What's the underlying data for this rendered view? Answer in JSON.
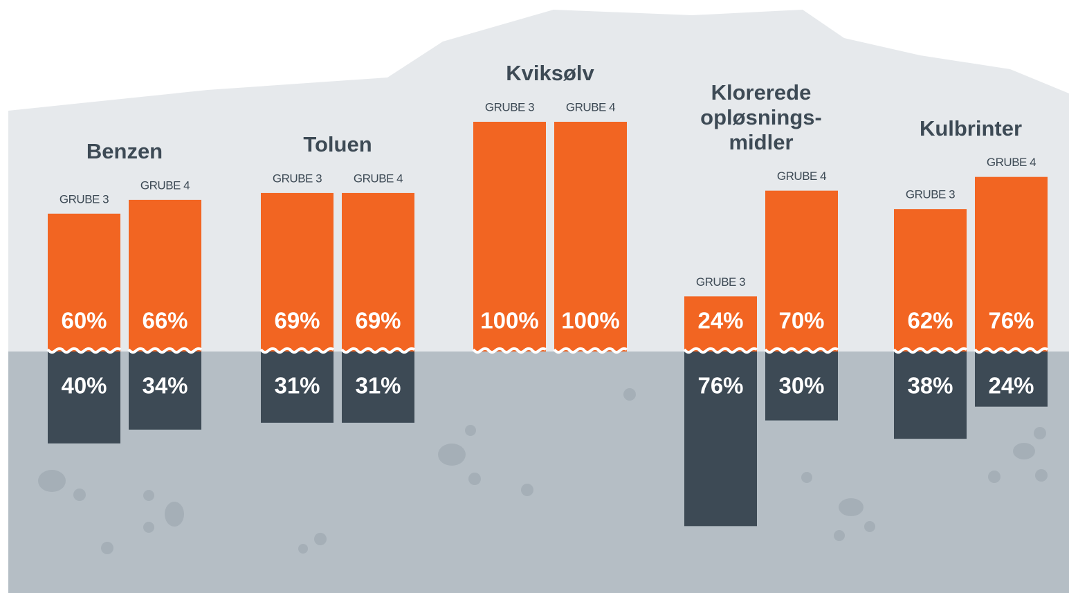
{
  "chart_data": {
    "type": "stacked-bar",
    "categories": [
      "Benzen",
      "Toluen",
      "Kviksølv",
      "Klorerede\nopløsnings-\nmidler",
      "Kulbrinter"
    ],
    "above_color": "#f26522",
    "below_color": "#3d4a55",
    "series": [
      {
        "name": "GRUBE 3",
        "values": [
          60,
          69,
          100,
          24,
          62
        ],
        "value_labels": [
          "60%",
          "69%",
          "100%",
          "24%",
          "62%"
        ],
        "below_values": [
          40,
          31,
          null,
          76,
          38
        ],
        "below_labels": [
          "40%",
          "31%",
          null,
          "76%",
          "38%"
        ]
      },
      {
        "name": "GRUBE 4",
        "values": [
          66,
          69,
          100,
          70,
          76
        ],
        "value_labels": [
          "66%",
          "69%",
          "100%",
          "70%",
          "76%"
        ],
        "below_values": [
          34,
          31,
          null,
          30,
          24
        ],
        "below_labels": [
          "34%",
          "31%",
          null,
          "30%",
          "24%"
        ]
      }
    ]
  }
}
